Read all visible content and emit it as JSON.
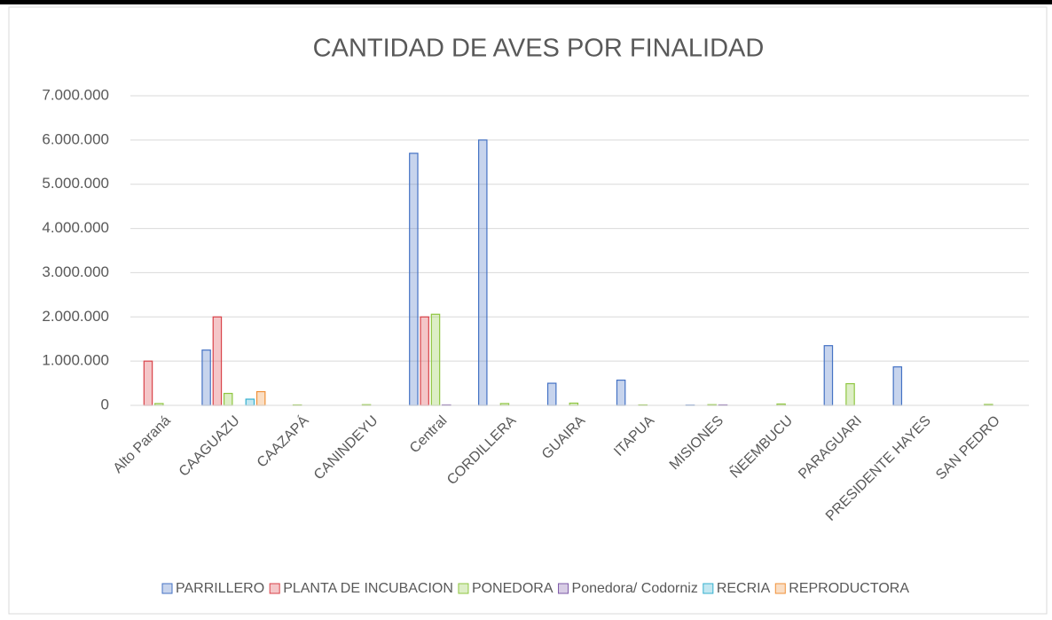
{
  "chart_data": {
    "type": "bar",
    "title": "CANTIDAD DE AVES POR FINALIDAD",
    "categories": [
      "Alto Paraná",
      "CAAGUAZU",
      "CAAZAPÁ",
      "CANINDEYU",
      "Central",
      "CORDILLERA",
      "GUAIRA",
      "ITAPUA",
      "MISIONES",
      "ÑEEMBUCU",
      "PARAGUARI",
      "PRESIDENTE HAYES",
      "SAN PEDRO"
    ],
    "series": [
      {
        "name": "PARRILLERO",
        "color": "#4472c4",
        "values": [
          0,
          1250000,
          0,
          0,
          5700000,
          6000000,
          500000,
          570000,
          5000,
          0,
          1350000,
          870000,
          0
        ]
      },
      {
        "name": "PLANTA DE INCUBACION",
        "color": "#d9434a",
        "values": [
          1000000,
          2000000,
          0,
          0,
          2000000,
          0,
          0,
          0,
          0,
          0,
          0,
          0,
          0
        ]
      },
      {
        "name": "PONEDORA",
        "color": "#8fc641",
        "values": [
          40000,
          270000,
          10000,
          15000,
          2060000,
          40000,
          50000,
          10000,
          15000,
          30000,
          490000,
          0,
          20000
        ]
      },
      {
        "name": "Ponedora/ Codorniz",
        "color": "#7e5aa8",
        "values": [
          0,
          0,
          0,
          0,
          10000,
          0,
          0,
          0,
          10000,
          0,
          0,
          0,
          0
        ]
      },
      {
        "name": "RECRIA",
        "color": "#35b0cf",
        "values": [
          0,
          140000,
          0,
          0,
          0,
          0,
          0,
          0,
          0,
          0,
          0,
          0,
          0
        ]
      },
      {
        "name": "REPRODUCTORA",
        "color": "#f0923a",
        "values": [
          0,
          310000,
          0,
          0,
          0,
          0,
          0,
          0,
          0,
          0,
          0,
          0,
          0
        ]
      }
    ],
    "ylim": [
      0,
      7000000
    ],
    "yticks": [
      0,
      {
        "value": 1000000,
        "label": "1.000.000"
      },
      {
        "value": 2000000,
        "label": "2.000.000"
      },
      {
        "value": 3000000,
        "label": "3.000.000"
      },
      {
        "value": 4000000,
        "label": "4.000.000"
      },
      {
        "value": 5000000,
        "label": "5.000.000"
      },
      {
        "value": 6000000,
        "label": "6.000.000"
      },
      {
        "value": 7000000,
        "label": "7.000.000"
      }
    ],
    "grid": true,
    "legend": "bottom"
  }
}
